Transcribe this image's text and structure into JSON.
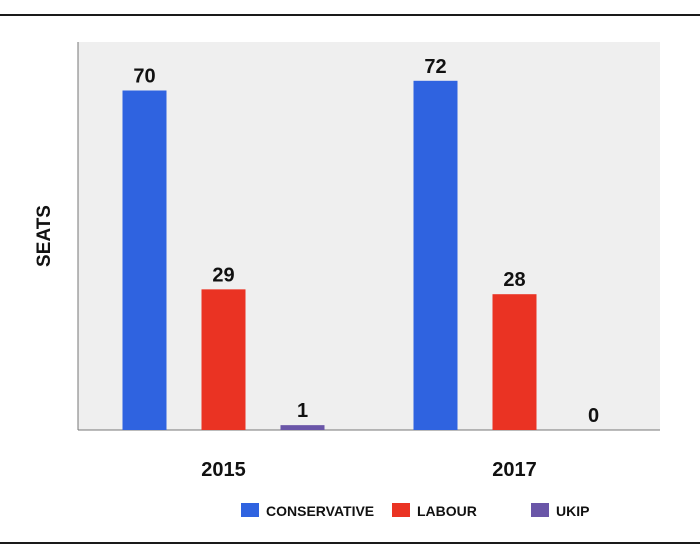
{
  "chart_data": {
    "type": "bar",
    "title": "",
    "xlabel": "",
    "ylabel": "SEATS",
    "categories": [
      "2015",
      "2017"
    ],
    "series": [
      {
        "name": "CONSERVATIVE",
        "color": "#2f63e0",
        "values": [
          70,
          72
        ]
      },
      {
        "name": "LABOUR",
        "color": "#ea3323",
        "values": [
          29,
          28
        ]
      },
      {
        "name": "UKIP",
        "color": "#6a56a8",
        "values": [
          1,
          0
        ]
      }
    ],
    "ylim": [
      0,
      80
    ],
    "grid": false,
    "legend_position": "bottom-center",
    "plot_background": "#efefef"
  }
}
